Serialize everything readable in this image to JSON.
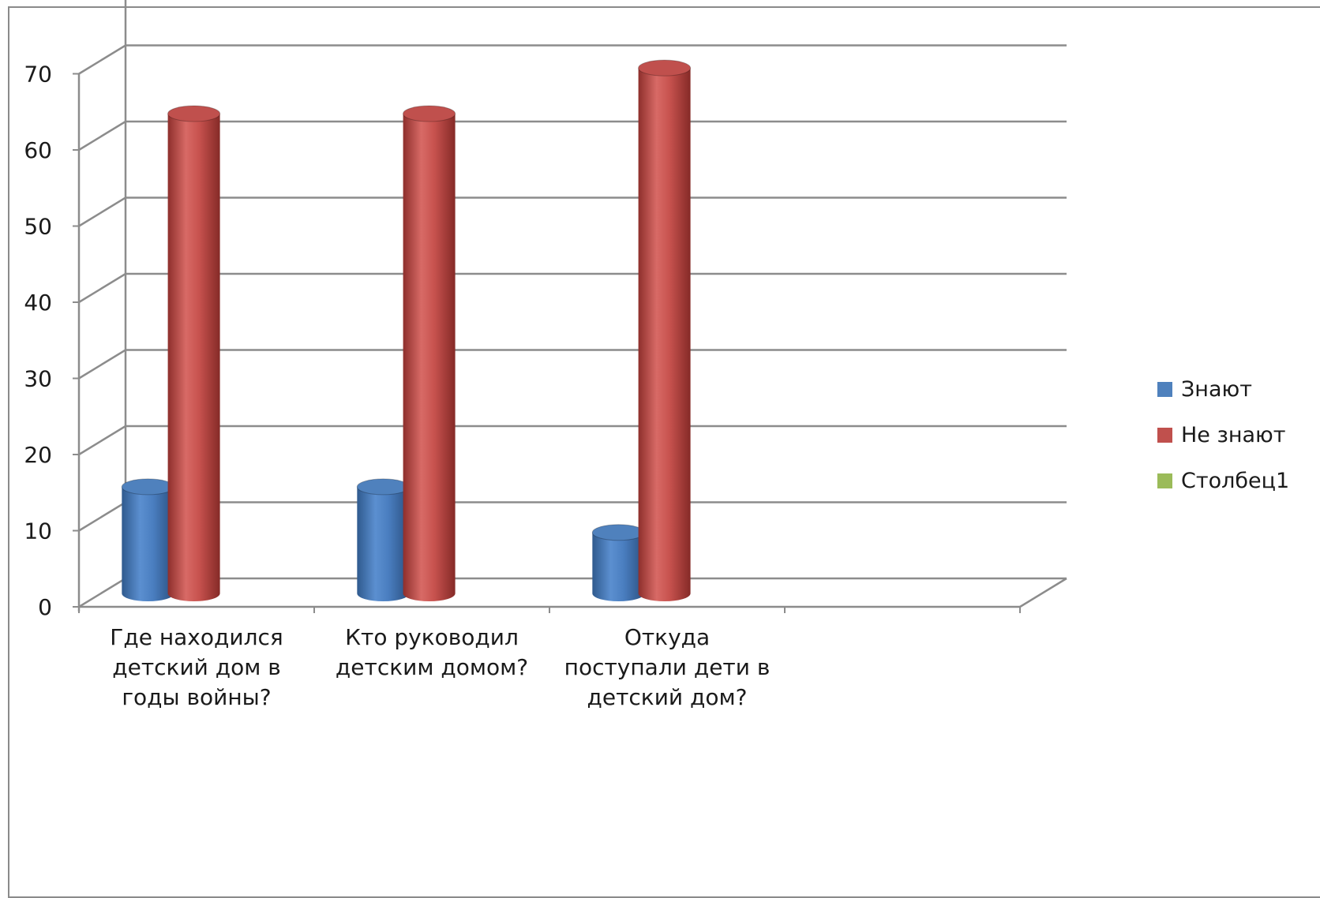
{
  "chart_data": {
    "type": "bar",
    "style": "3d-cylinder",
    "categories": [
      [
        "Где находился",
        "детский дом в",
        "годы войны?"
      ],
      [
        "Кто руководил",
        "детским домом?"
      ],
      [
        "Откуда",
        "поступали дети в",
        "детский дом?"
      ],
      [
        ""
      ]
    ],
    "series": [
      {
        "name": "Знают",
        "color": "#4f81bd",
        "values": [
          14,
          14,
          8,
          null
        ]
      },
      {
        "name": "Не знают",
        "color": "#c0504d",
        "values": [
          63,
          63,
          69,
          null
        ]
      },
      {
        "name": "Столбец1",
        "color": "#9bbb59",
        "values": [
          null,
          null,
          null,
          null
        ]
      }
    ],
    "yticks": [
      "0",
      "10",
      "20",
      "30",
      "40",
      "50",
      "60",
      "70"
    ],
    "ylim": [
      0,
      70
    ],
    "grid": true,
    "legend": "right"
  }
}
